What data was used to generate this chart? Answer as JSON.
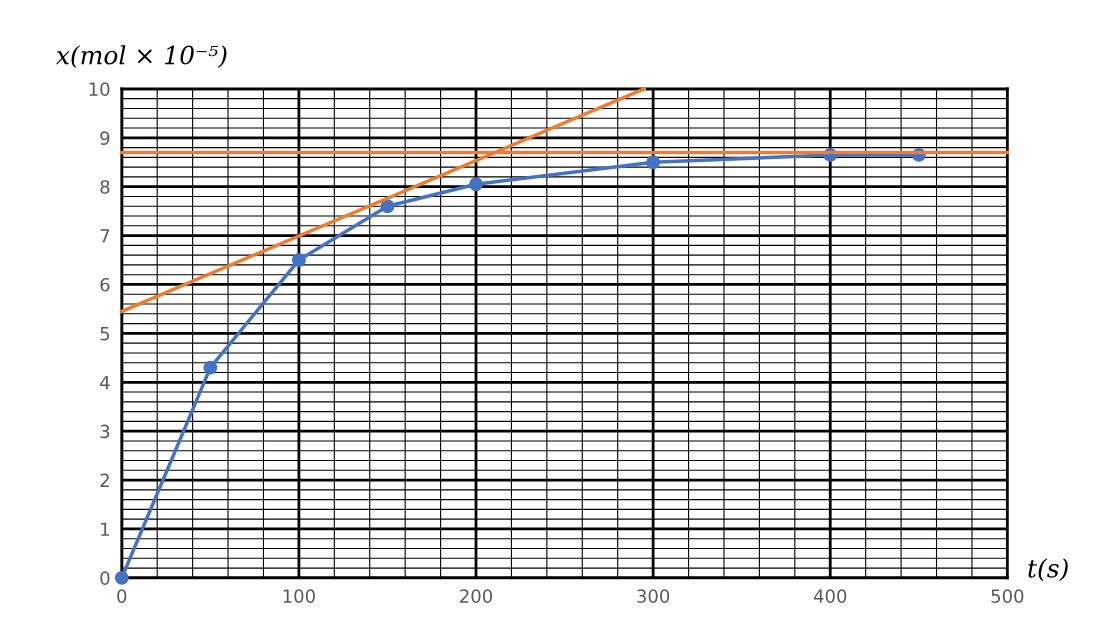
{
  "chart_data": {
    "type": "line",
    "xlabel": "t(s)",
    "ylabel": "x(mol × 10⁻⁵)",
    "xlim": [
      0,
      500
    ],
    "ylim": [
      0,
      10
    ],
    "xticks": [
      0,
      100,
      200,
      300,
      400,
      500
    ],
    "yticks": [
      0,
      1,
      2,
      3,
      4,
      5,
      6,
      7,
      8,
      9,
      10
    ],
    "grid": true,
    "series": [
      {
        "color": "#4472c4",
        "marker": "circle",
        "x": [
          0,
          50,
          100,
          150,
          200,
          300,
          400,
          450
        ],
        "values": [
          0,
          4.3,
          6.5,
          7.6,
          8.05,
          8.5,
          8.65,
          8.65
        ]
      },
      {
        "color": "#ed7d31",
        "marker": "none",
        "x": [
          0,
          295
        ],
        "values": [
          5.45,
          10
        ]
      },
      {
        "color": "#ed7d31",
        "marker": "none",
        "x": [
          0,
          500
        ],
        "values": [
          8.7,
          8.7
        ]
      }
    ]
  }
}
